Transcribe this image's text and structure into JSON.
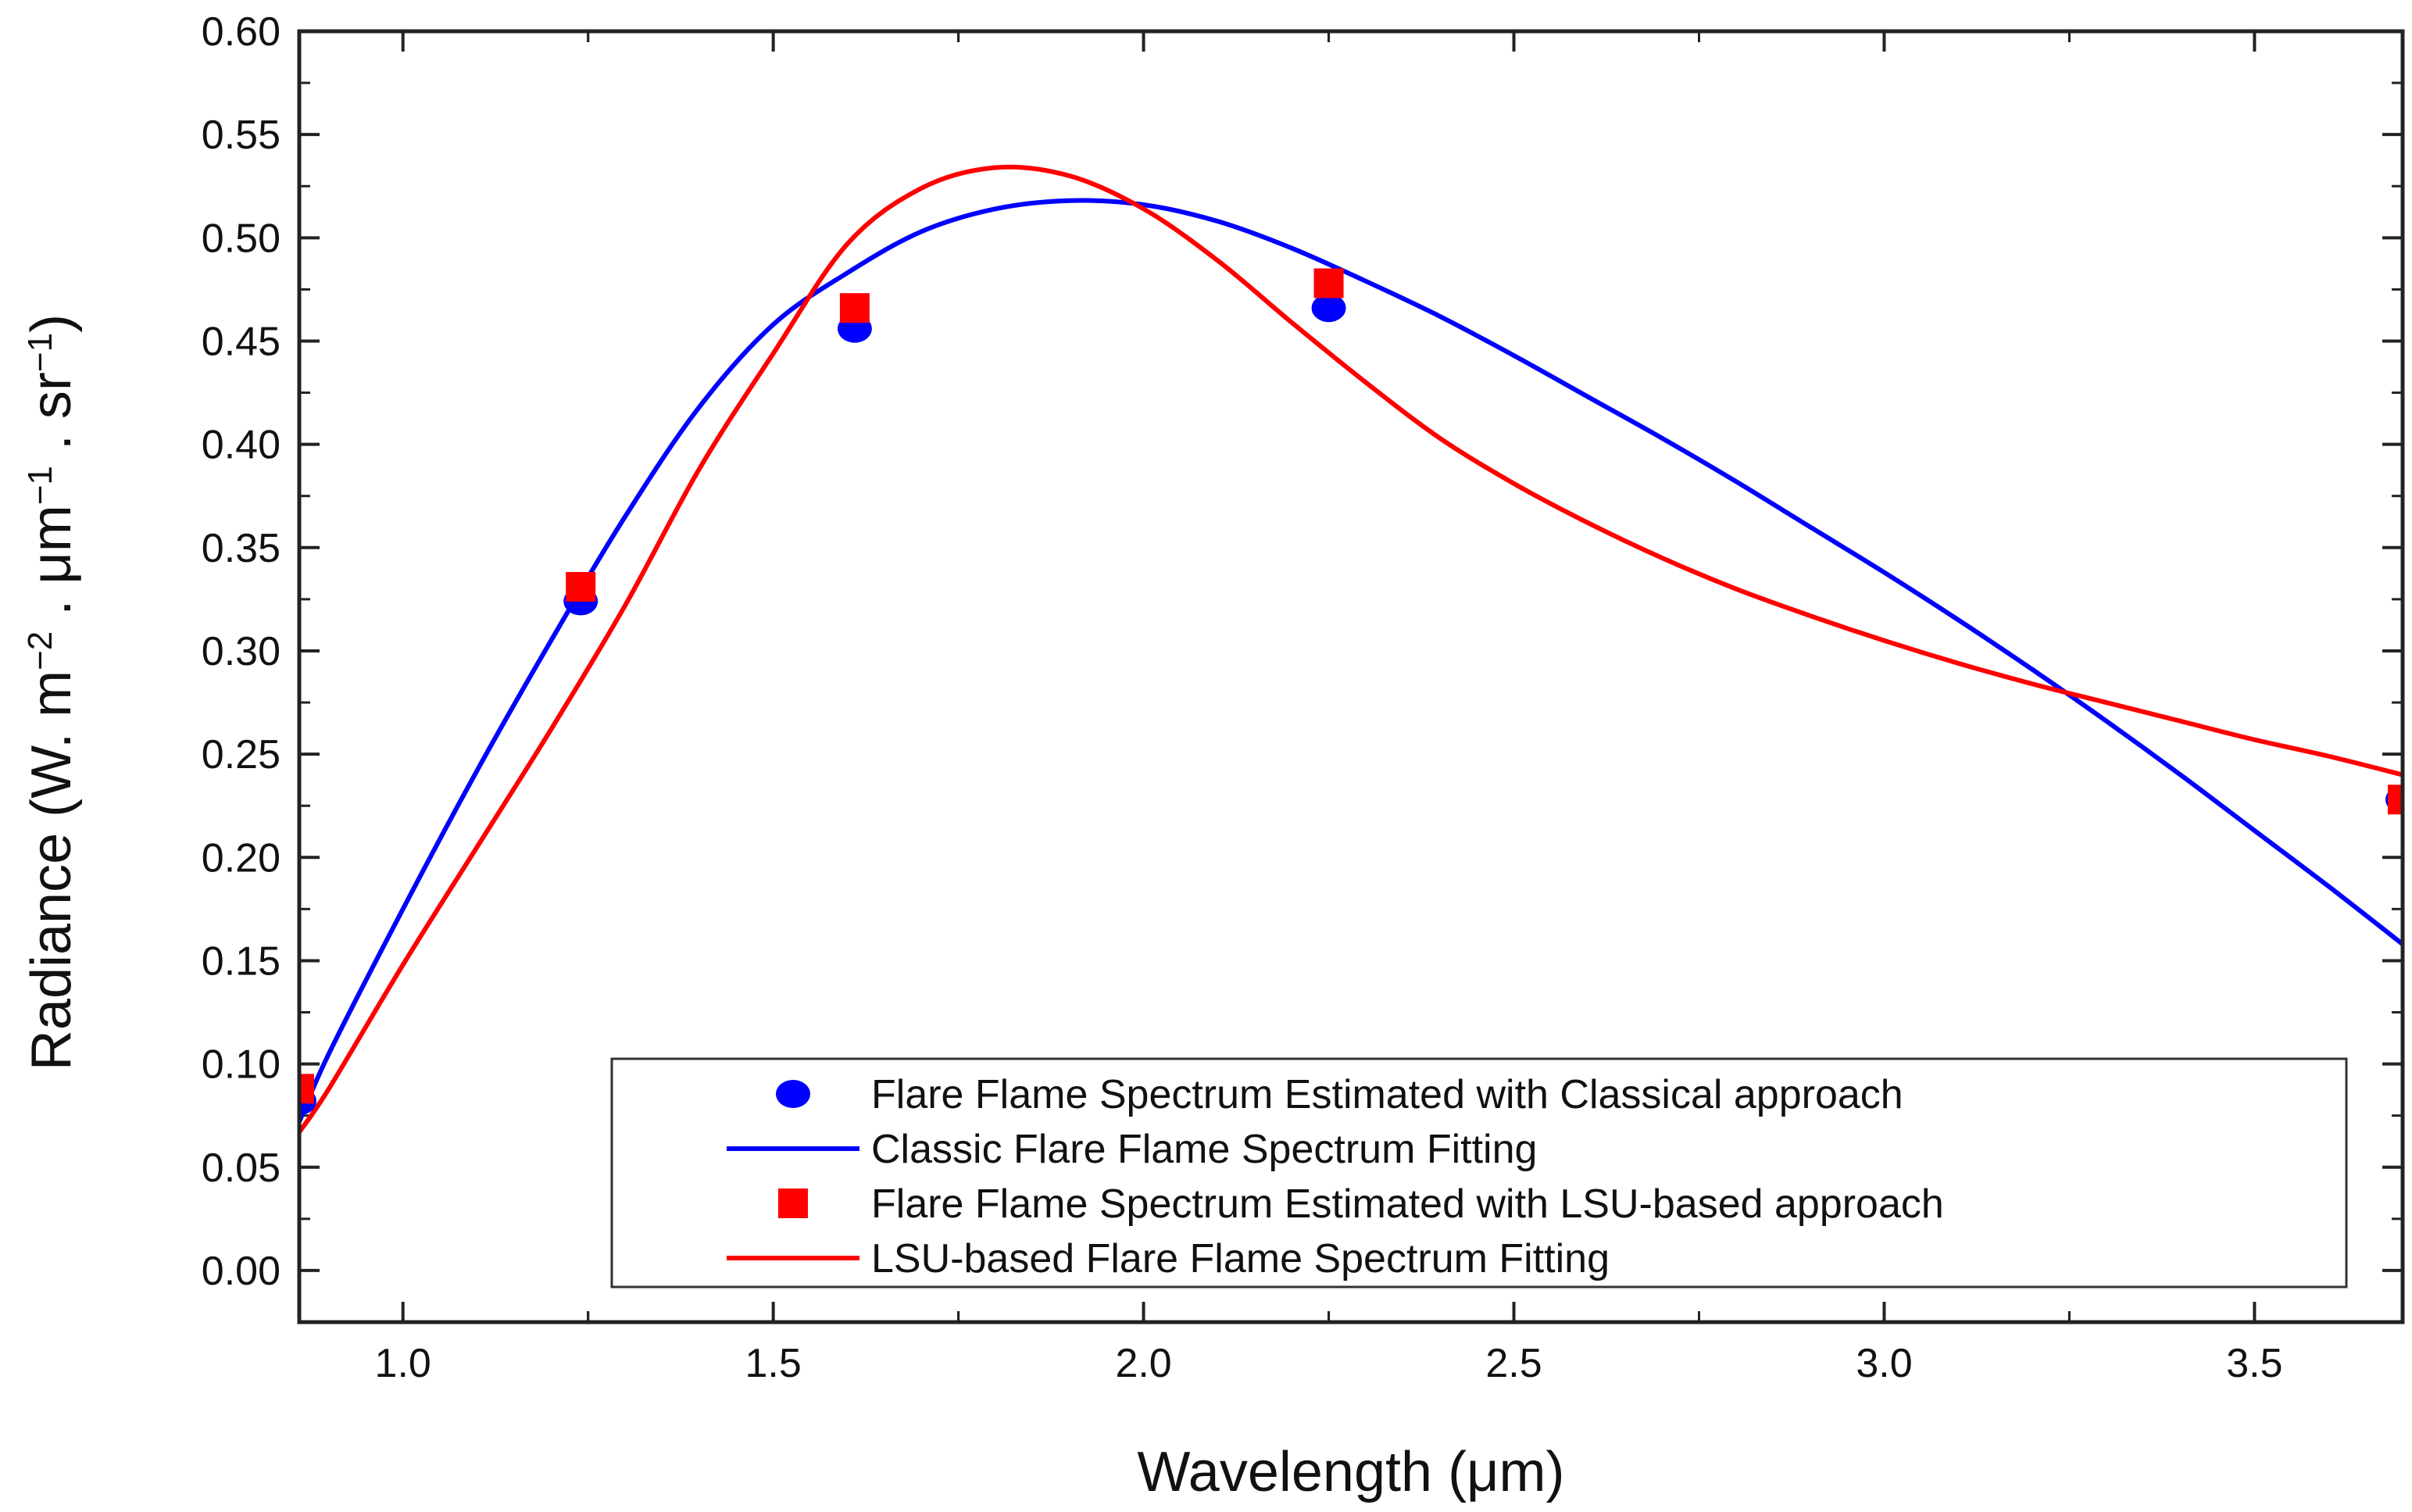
{
  "chart_data": {
    "type": "line",
    "xlabel": "Wavelength (μm)",
    "ylabel": {
      "prefix": "Radiance (W. m",
      "sup1": "−2",
      "mid1": " . μm",
      "sup2": "−1",
      "mid2": " . sr",
      "sup3": "−1",
      "suffix": ")"
    },
    "xlim": [
      0.86,
      3.7
    ],
    "ylim": [
      -0.025,
      0.6
    ],
    "xticks": [
      "1.0",
      "1.5",
      "2.0",
      "2.5",
      "3.0",
      "3.5"
    ],
    "yticks": [
      "0.00",
      "0.05",
      "0.10",
      "0.15",
      "0.20",
      "0.25",
      "0.30",
      "0.35",
      "0.40",
      "0.45",
      "0.50",
      "0.55",
      "0.60"
    ],
    "colors": {
      "classical": "#0000ff",
      "lsu": "#ff0000",
      "axis": "#222222"
    },
    "series": [
      {
        "name": "Flare Flame Spectrum Estimated with Classical approach",
        "kind": "scatter",
        "marker": "circle",
        "color": "#0000ff",
        "x": [
          0.86,
          1.24,
          1.61,
          2.25,
          3.7
        ],
        "y": [
          0.082,
          0.324,
          0.456,
          0.466,
          0.228
        ]
      },
      {
        "name": "Classic Flare Flame Spectrum Fitting",
        "kind": "line",
        "color": "#0000ff",
        "x": [
          0.86,
          0.9,
          1.0,
          1.1,
          1.2,
          1.3,
          1.4,
          1.5,
          1.6,
          1.7,
          1.8,
          1.9,
          2.0,
          2.1,
          2.2,
          2.3,
          2.4,
          2.5,
          2.6,
          2.7,
          2.8,
          2.9,
          3.0,
          3.1,
          3.2,
          3.3,
          3.4,
          3.5,
          3.6,
          3.7
        ],
        "y": [
          0.072,
          0.105,
          0.175,
          0.242,
          0.305,
          0.365,
          0.418,
          0.458,
          0.483,
          0.503,
          0.514,
          0.518,
          0.516,
          0.508,
          0.495,
          0.479,
          0.462,
          0.443,
          0.423,
          0.403,
          0.382,
          0.36,
          0.338,
          0.315,
          0.291,
          0.266,
          0.24,
          0.213,
          0.186,
          0.158
        ]
      },
      {
        "name": "Flare Flame Spectrum Estimated with LSU-based approach",
        "kind": "scatter",
        "marker": "square",
        "color": "#ff0000",
        "x": [
          0.86,
          1.24,
          1.61,
          2.25,
          3.7
        ],
        "y": [
          0.088,
          0.331,
          0.466,
          0.478,
          0.228
        ]
      },
      {
        "name": "LSU-based Flare Flame Spectrum Fitting",
        "kind": "line",
        "color": "#ff0000",
        "x": [
          0.86,
          0.9,
          1.0,
          1.1,
          1.2,
          1.3,
          1.4,
          1.5,
          1.6,
          1.7,
          1.8,
          1.9,
          2.0,
          2.1,
          2.2,
          2.3,
          2.4,
          2.5,
          2.6,
          2.7,
          2.8,
          2.9,
          3.0,
          3.1,
          3.2,
          3.3,
          3.4,
          3.5,
          3.6,
          3.7
        ],
        "y": [
          0.067,
          0.088,
          0.148,
          0.205,
          0.262,
          0.322,
          0.388,
          0.444,
          0.497,
          0.524,
          0.534,
          0.53,
          0.514,
          0.489,
          0.459,
          0.43,
          0.403,
          0.381,
          0.362,
          0.345,
          0.33,
          0.317,
          0.305,
          0.294,
          0.284,
          0.275,
          0.266,
          0.257,
          0.249,
          0.24
        ]
      }
    ],
    "legend": {
      "position": "bottom-right",
      "entries": [
        "Flare Flame Spectrum Estimated with Classical approach",
        "Classic Flare Flame Spectrum Fitting",
        "Flare Flame Spectrum Estimated with LSU-based approach",
        "LSU-based Flare Flame Spectrum Fitting"
      ]
    }
  }
}
